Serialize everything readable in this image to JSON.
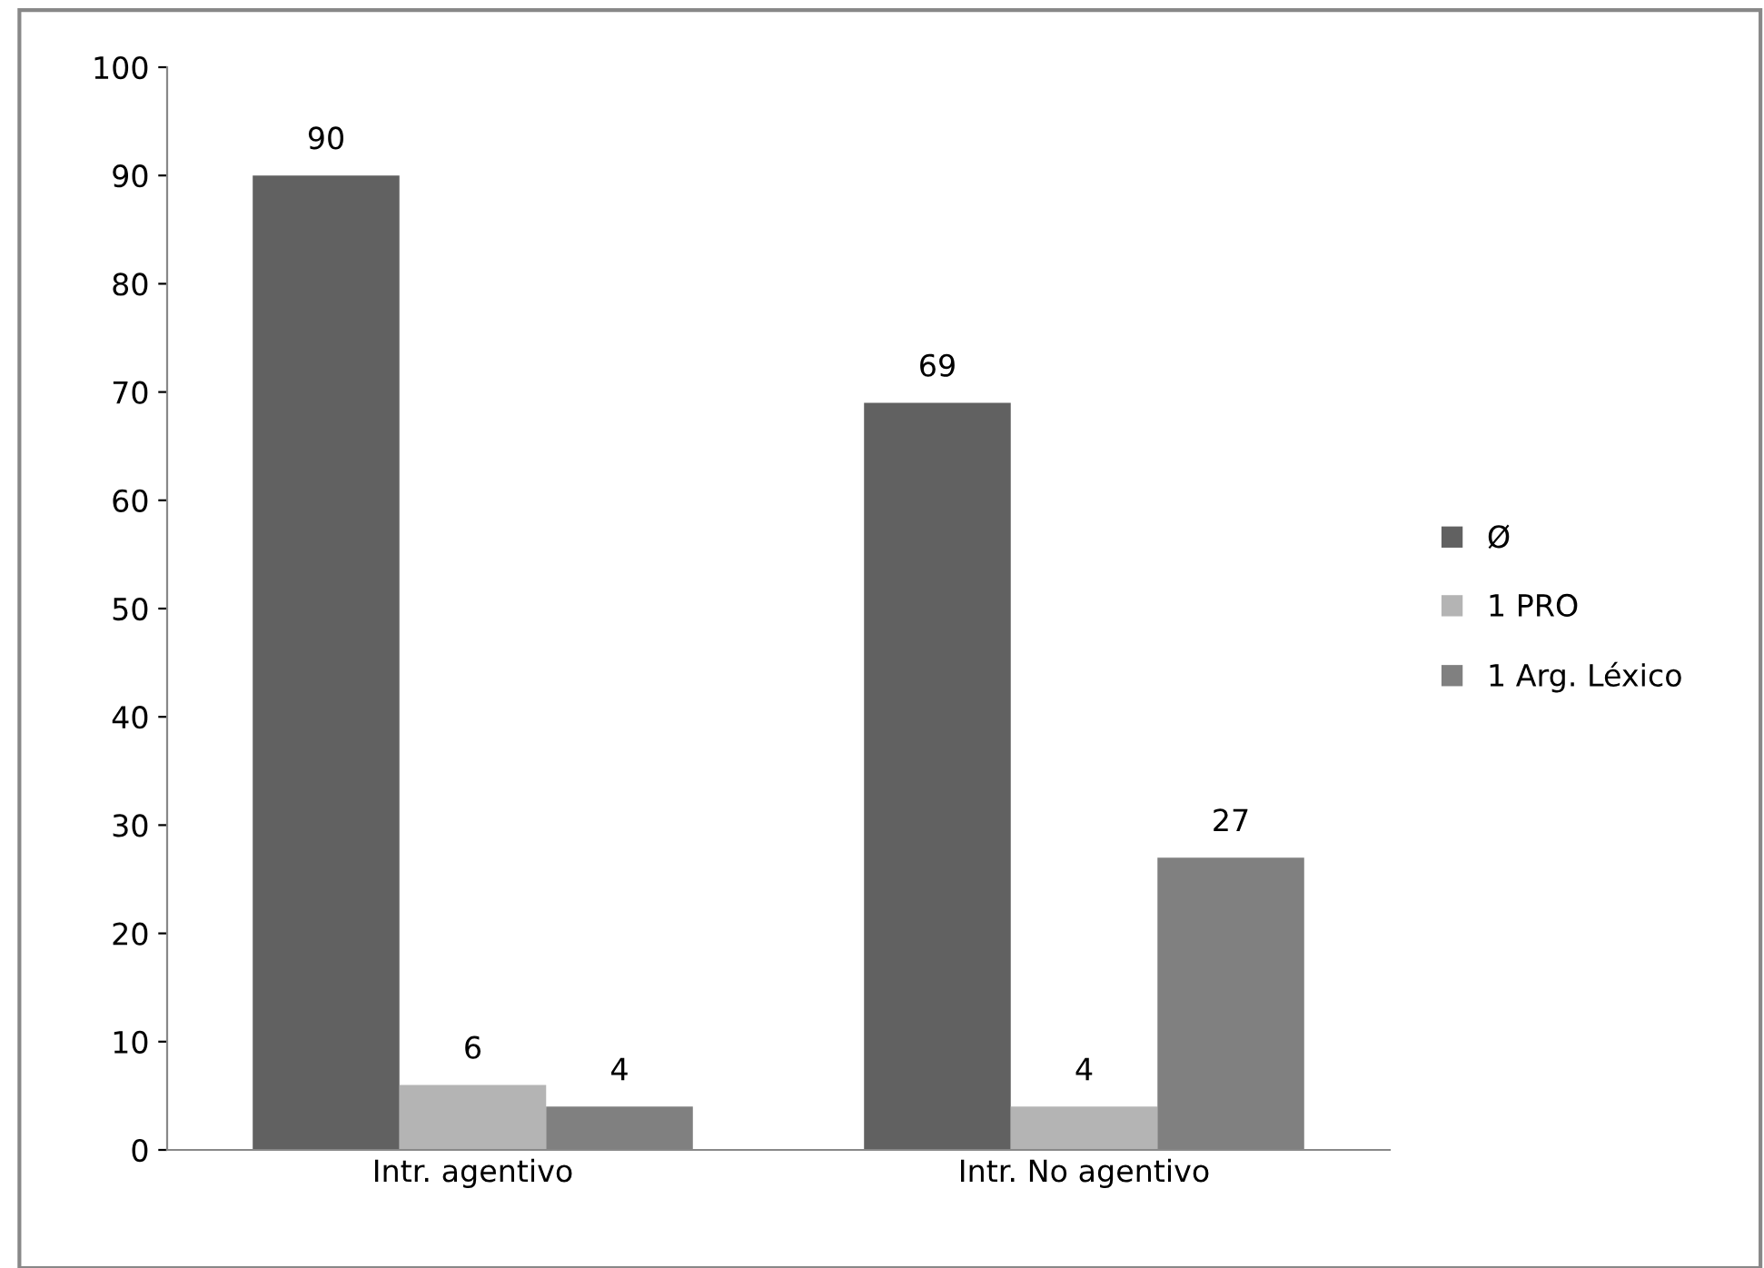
{
  "chart_data": {
    "type": "bar",
    "categories": [
      "Intr. agentivo",
      "Intr. No agentivo"
    ],
    "series": [
      {
        "name": "Ø",
        "color": "#616161",
        "values": [
          90,
          69
        ]
      },
      {
        "name": "1 PRO",
        "color": "#b4b4b4",
        "values": [
          6,
          4
        ]
      },
      {
        "name": "1 Arg. Léxico",
        "color": "#808080",
        "values": [
          4,
          27
        ]
      }
    ],
    "ylim": [
      0,
      100
    ],
    "yticks": [
      0,
      10,
      20,
      30,
      40,
      50,
      60,
      70,
      80,
      90,
      100
    ],
    "data_labels": true,
    "legend": "right",
    "grid": false
  }
}
